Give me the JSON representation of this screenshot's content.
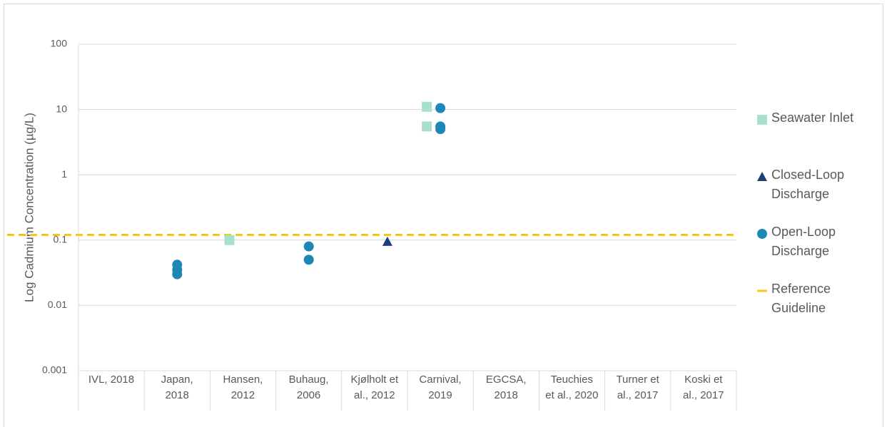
{
  "chart_data": {
    "type": "scatter",
    "y_label": "Log Cadmium Concentration (µg/L)",
    "log_scale": true,
    "grid": true,
    "legend": "right",
    "categories": [
      "IVL, 2018",
      "Japan,\n2018",
      "Hansen,\n2012",
      "Buhaug,\n2006",
      "Kjølholt et\nal., 2012",
      "Carnival,\n2019",
      "EGCSA,\n2018",
      "Teuchies\net al., 2020",
      "Turner et\nal., 2017",
      "Koski et\nal., 2017"
    ],
    "ylim": [
      0.001,
      100
    ],
    "yticks": [
      0.001,
      0.01,
      0.1,
      1,
      10,
      100
    ],
    "series": [
      {
        "name": "Seawater Inlet",
        "color": "#a8e0cc",
        "marker": "square",
        "values": [
          [],
          [],
          [
            0.1
          ],
          [],
          [],
          [
            11,
            5.5
          ],
          [],
          [],
          [],
          []
        ]
      },
      {
        "name": "Closed-Loop\nDischarge",
        "color": "#1a3f7a",
        "marker": "triangle",
        "values": [
          [],
          [],
          [],
          [],
          [
            0.095
          ],
          [],
          [],
          [],
          [],
          []
        ]
      },
      {
        "name": "Open-Loop\nDischarge",
        "color": "#1f87b8",
        "marker": "circle",
        "values": [
          [],
          [
            0.042,
            0.035,
            0.03
          ],
          [],
          [
            0.08,
            0.05
          ],
          [],
          [
            10.5,
            5.5,
            5.0
          ],
          [],
          [],
          [],
          []
        ]
      }
    ],
    "reference_lines": [
      {
        "name": "Reference\nGuideline",
        "value": 0.12,
        "color": "#f5c518",
        "style": "dashed"
      }
    ]
  }
}
